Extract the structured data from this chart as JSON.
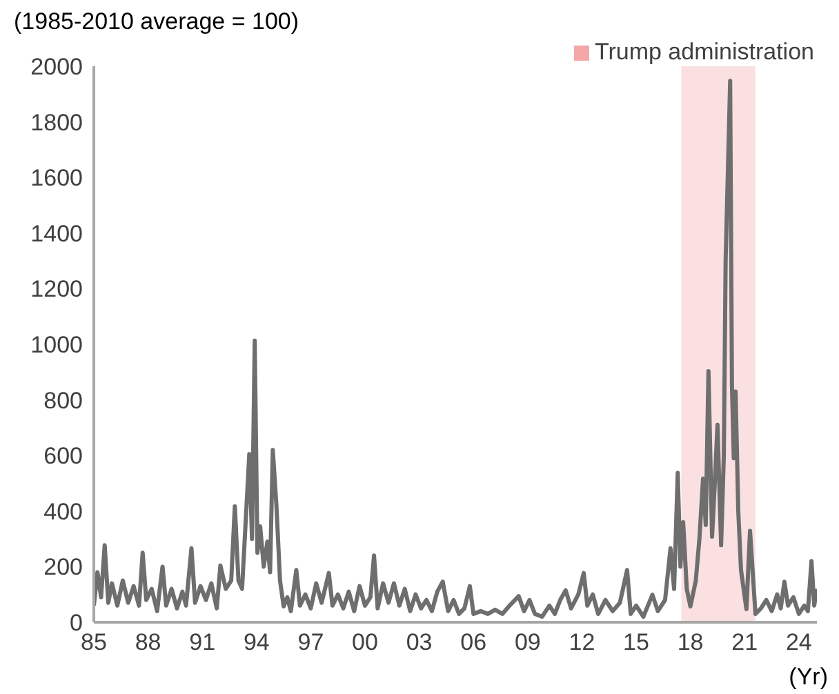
{
  "chart_data": {
    "type": "line",
    "ylabel": "(1985-2010 average = 100)",
    "xlabel": "(Yr)",
    "x": [
      1985.0,
      1985.2,
      1985.4,
      1985.6,
      1985.8,
      1986.0,
      1986.3,
      1986.6,
      1986.9,
      1987.2,
      1987.5,
      1987.7,
      1987.9,
      1988.2,
      1988.5,
      1988.8,
      1989.0,
      1989.3,
      1989.6,
      1989.9,
      1990.1,
      1990.4,
      1990.6,
      1990.9,
      1991.2,
      1991.5,
      1991.8,
      1992.0,
      1992.3,
      1992.6,
      1992.8,
      1993.0,
      1993.2,
      1993.6,
      1993.75,
      1993.9,
      1994.05,
      1994.2,
      1994.4,
      1994.6,
      1994.75,
      1994.9,
      1995.1,
      1995.3,
      1995.5,
      1995.7,
      1995.9,
      1996.2,
      1996.4,
      1996.7,
      1997.0,
      1997.3,
      1997.6,
      1998.0,
      1998.2,
      1998.5,
      1998.8,
      1999.1,
      1999.4,
      1999.7,
      2000.0,
      2000.3,
      2000.5,
      2000.7,
      2001.0,
      2001.3,
      2001.6,
      2001.9,
      2002.2,
      2002.5,
      2002.8,
      2003.1,
      2003.4,
      2003.7,
      2004.0,
      2004.3,
      2004.6,
      2004.9,
      2005.2,
      2005.5,
      2005.8,
      2006.0,
      2006.4,
      2006.8,
      2007.2,
      2007.6,
      2008.0,
      2008.5,
      2008.8,
      2009.1,
      2009.4,
      2009.8,
      2010.2,
      2010.5,
      2010.8,
      2011.1,
      2011.4,
      2011.8,
      2012.1,
      2012.3,
      2012.6,
      2012.9,
      2013.3,
      2013.7,
      2014.1,
      2014.5,
      2014.7,
      2015.0,
      2015.4,
      2015.9,
      2016.2,
      2016.6,
      2016.9,
      2017.1,
      2017.3,
      2017.45,
      2017.6,
      2017.8,
      2018.0,
      2018.3,
      2018.5,
      2018.7,
      2018.85,
      2019.0,
      2019.2,
      2019.35,
      2019.5,
      2019.7,
      2019.85,
      2019.95,
      2020.2,
      2020.3,
      2020.4,
      2020.5,
      2020.65,
      2020.8,
      2021.1,
      2021.3,
      2021.6,
      2021.9,
      2022.2,
      2022.5,
      2022.8,
      2023.0,
      2023.2,
      2023.4,
      2023.7,
      2024.0,
      2024.3,
      2024.5,
      2024.7,
      2024.85,
      2025.0
    ],
    "series": [
      {
        "color": "#6e6e6e",
        "values": [
          60,
          180,
          90,
          277,
          70,
          140,
          60,
          150,
          70,
          130,
          60,
          250,
          80,
          120,
          40,
          200,
          60,
          120,
          50,
          110,
          60,
          266,
          70,
          130,
          80,
          140,
          50,
          204,
          120,
          150,
          417,
          150,
          120,
          605,
          300,
          1013,
          250,
          345,
          200,
          290,
          180,
          620,
          420,
          150,
          57,
          90,
          40,
          188,
          60,
          100,
          50,
          140,
          70,
          177,
          60,
          100,
          50,
          110,
          40,
          130,
          60,
          90,
          240,
          50,
          140,
          70,
          140,
          60,
          120,
          40,
          100,
          50,
          80,
          40,
          110,
          146,
          40,
          80,
          30,
          50,
          130,
          30,
          40,
          30,
          45,
          30,
          60,
          94,
          40,
          80,
          30,
          20,
          60,
          30,
          80,
          115,
          50,
          100,
          177,
          60,
          100,
          30,
          80,
          40,
          70,
          188,
          30,
          60,
          20,
          99,
          40,
          80,
          266,
          120,
          537,
          200,
          360,
          120,
          57,
          150,
          300,
          517,
          350,
          903,
          308,
          500,
          710,
          277,
          600,
          1300,
          1947,
          850,
          590,
          830,
          400,
          188,
          47,
          329,
          30,
          50,
          80,
          40,
          100,
          50,
          146,
          60,
          90,
          30,
          60,
          40,
          220,
          60,
          120
        ]
      }
    ],
    "xlim": [
      1985,
      2025
    ],
    "xticks": [
      {
        "value": 1985,
        "label": "85"
      },
      {
        "value": 1988,
        "label": "88"
      },
      {
        "value": 1991,
        "label": "91"
      },
      {
        "value": 1994,
        "label": "94"
      },
      {
        "value": 1997,
        "label": "97"
      },
      {
        "value": 2000,
        "label": "00"
      },
      {
        "value": 2003,
        "label": "03"
      },
      {
        "value": 2006,
        "label": "06"
      },
      {
        "value": 2009,
        "label": "09"
      },
      {
        "value": 2012,
        "label": "12"
      },
      {
        "value": 2015,
        "label": "15"
      },
      {
        "value": 2018,
        "label": "18"
      },
      {
        "value": 2021,
        "label": "21"
      },
      {
        "value": 2024,
        "label": "24"
      }
    ],
    "ylim": [
      0,
      2000
    ],
    "yticks": [
      0,
      200,
      400,
      600,
      800,
      1000,
      1200,
      1400,
      1600,
      1800,
      2000
    ],
    "bands": [
      {
        "axis": "x",
        "from": 2017.5,
        "to": 2021.6,
        "label": "Trump administration",
        "color": "#f4a6a8"
      }
    ],
    "legend": "top right",
    "grid": false,
    "marker": "none",
    "line_style": "solid"
  }
}
